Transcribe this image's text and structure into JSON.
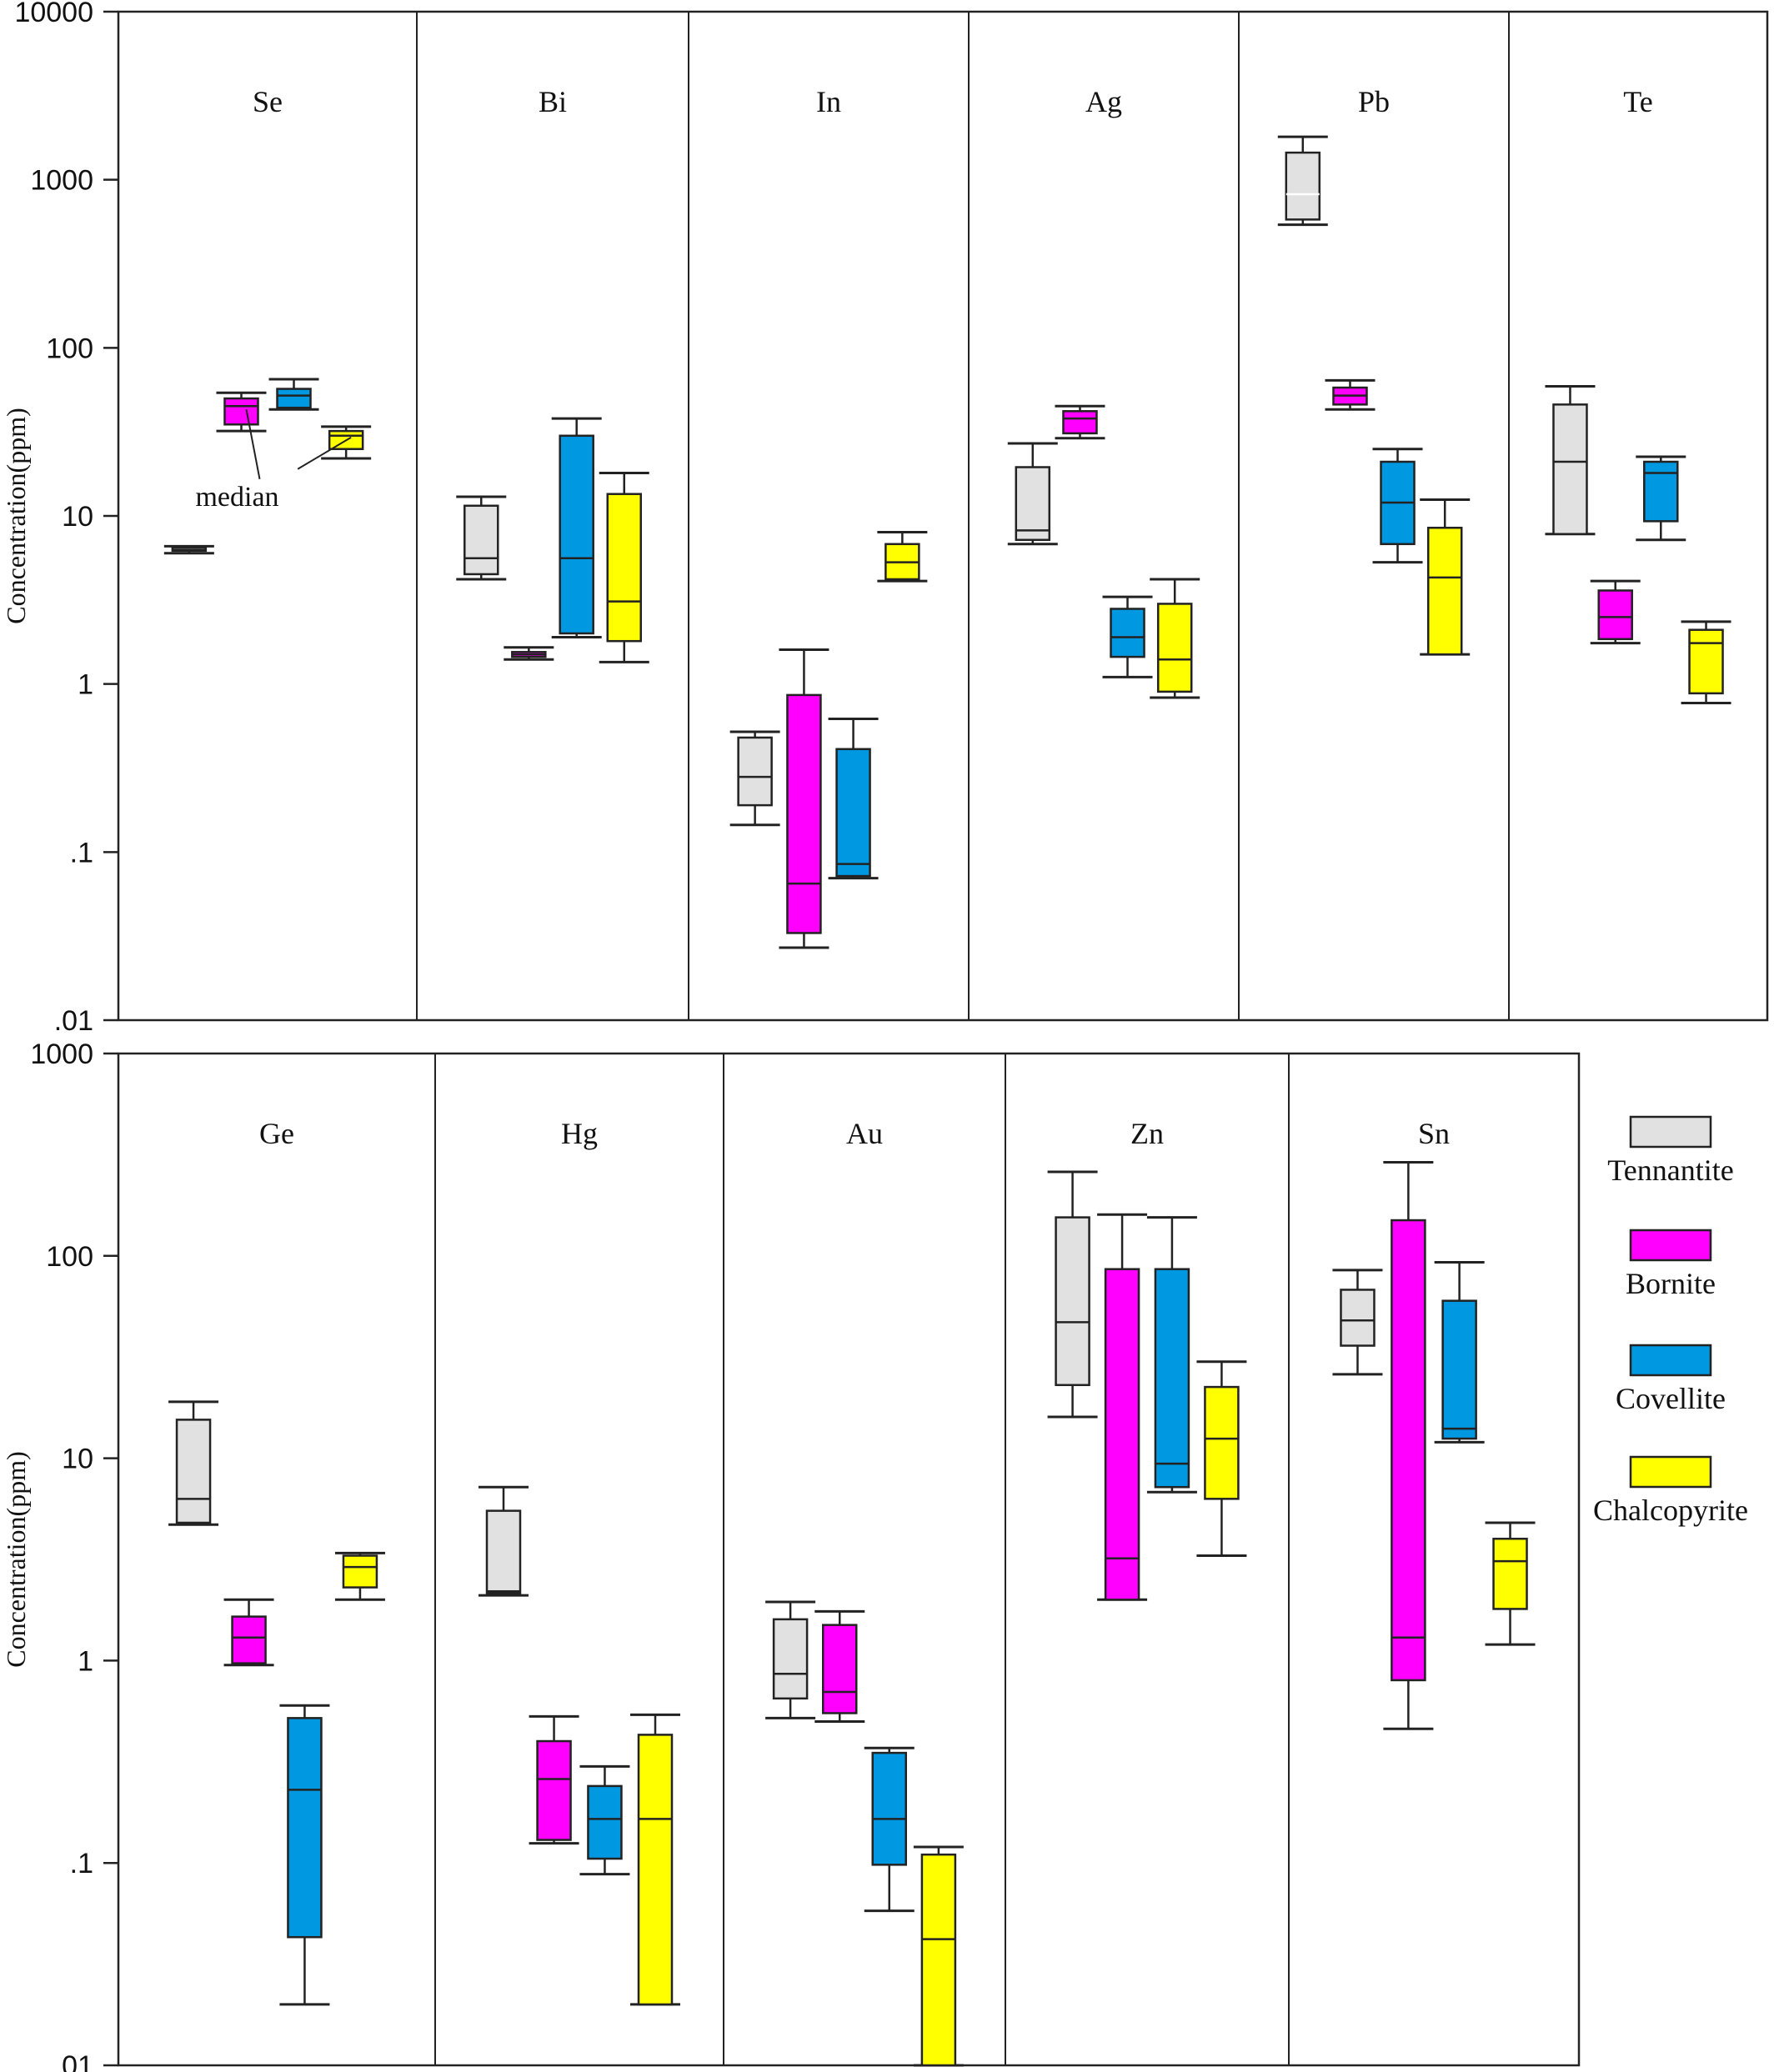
{
  "chart_data": [
    {
      "type": "box",
      "ylabel": "Concentration(ppm)",
      "yscale": "log",
      "ylim": [
        0.01,
        10000
      ],
      "yticks": [
        "10000",
        "1000",
        "100",
        "10",
        "1",
        ".1",
        ".01"
      ],
      "annotation": "median",
      "panels": [
        {
          "element": "Se",
          "boxes": [
            {
              "mineral": "Tennantite",
              "min": 6.0,
              "q1": 6.2,
              "median": 6.3,
              "q3": 6.5,
              "max": 6.6
            },
            {
              "mineral": "Bornite",
              "min": 32,
              "q1": 35,
              "median": 45,
              "q3": 50,
              "max": 54
            },
            {
              "mineral": "Covellite",
              "min": 43,
              "q1": 44,
              "median": 52,
              "q3": 57,
              "max": 65
            },
            {
              "mineral": "Chalcopyrite",
              "min": 22,
              "q1": 25,
              "median": 30,
              "q3": 32,
              "max": 34
            }
          ]
        },
        {
          "element": "Bi",
          "boxes": [
            {
              "mineral": "Tennantite",
              "min": 4.2,
              "q1": 4.5,
              "median": 5.6,
              "q3": 11.5,
              "max": 13
            },
            {
              "mineral": "Bornite",
              "min": 1.4,
              "q1": 1.45,
              "median": 1.5,
              "q3": 1.55,
              "max": 1.65
            },
            {
              "mineral": "Covellite",
              "min": 1.9,
              "q1": 2.0,
              "median": 5.6,
              "q3": 30,
              "max": 38
            },
            {
              "mineral": "Chalcopyrite",
              "min": 1.35,
              "q1": 1.8,
              "median": 3.1,
              "q3": 13.5,
              "max": 18
            }
          ]
        },
        {
          "element": "In",
          "boxes": [
            {
              "mineral": "Tennantite",
              "min": 0.145,
              "q1": 0.19,
              "median": 0.28,
              "q3": 0.48,
              "max": 0.52
            },
            {
              "mineral": "Bornite",
              "min": 0.027,
              "q1": 0.033,
              "median": 0.065,
              "q3": 0.86,
              "max": 1.6
            },
            {
              "mineral": "Covellite",
              "min": 0.07,
              "q1": 0.072,
              "median": 0.085,
              "q3": 0.41,
              "max": 0.62
            },
            {
              "mineral": "Chalcopyrite",
              "min": 4.1,
              "q1": 4.2,
              "median": 5.3,
              "q3": 6.8,
              "max": 8.0
            }
          ]
        },
        {
          "element": "Ag",
          "boxes": [
            {
              "mineral": "Tennantite",
              "min": 6.8,
              "q1": 7.2,
              "median": 8.2,
              "q3": 19.5,
              "max": 27
            },
            {
              "mineral": "Bornite",
              "min": 29,
              "q1": 31,
              "median": 38,
              "q3": 42,
              "max": 45
            },
            {
              "mineral": "Covellite",
              "min": 1.1,
              "q1": 1.45,
              "median": 1.9,
              "q3": 2.8,
              "max": 3.3
            },
            {
              "mineral": "Chalcopyrite",
              "min": 0.83,
              "q1": 0.9,
              "median": 1.4,
              "q3": 3.0,
              "max": 4.2
            }
          ]
        },
        {
          "element": "Pb",
          "boxes": [
            {
              "mineral": "Tennantite",
              "min": 540,
              "q1": 580,
              "median": 820,
              "q3": 1450,
              "max": 1800
            },
            {
              "mineral": "Bornite",
              "min": 43,
              "q1": 46,
              "median": 52,
              "q3": 58,
              "max": 64
            },
            {
              "mineral": "Covellite",
              "min": 5.3,
              "q1": 6.8,
              "median": 12,
              "q3": 21,
              "max": 25
            },
            {
              "mineral": "Chalcopyrite",
              "min": 1.5,
              "q1": 1.5,
              "median": 4.3,
              "q3": 8.5,
              "max": 12.5
            }
          ]
        },
        {
          "element": "Te",
          "boxes": [
            {
              "mineral": "Tennantite",
              "min": 7.8,
              "q1": 7.8,
              "median": 21,
              "q3": 46,
              "max": 59
            },
            {
              "mineral": "Bornite",
              "min": 1.75,
              "q1": 1.85,
              "median": 2.5,
              "q3": 3.6,
              "max": 4.1
            },
            {
              "mineral": "Covellite",
              "min": 7.2,
              "q1": 9.3,
              "median": 18,
              "q3": 21,
              "max": 22.5
            },
            {
              "mineral": "Chalcopyrite",
              "min": 0.77,
              "q1": 0.88,
              "median": 1.75,
              "q3": 2.1,
              "max": 2.35
            }
          ]
        }
      ]
    },
    {
      "type": "box",
      "ylabel": "Concentration(ppm)",
      "yscale": "log",
      "ylim": [
        0.01,
        1000
      ],
      "yticks": [
        "1000",
        "100",
        "10",
        "1",
        ".1",
        ".01"
      ],
      "panels": [
        {
          "element": "Ge",
          "boxes": [
            {
              "mineral": "Tennantite",
              "min": 4.7,
              "q1": 4.8,
              "median": 6.3,
              "q3": 15.5,
              "max": 19
            },
            {
              "mineral": "Bornite",
              "min": 0.95,
              "q1": 0.97,
              "median": 1.3,
              "q3": 1.65,
              "max": 2.0
            },
            {
              "mineral": "Covellite",
              "min": 0.02,
              "q1": 0.043,
              "median": 0.23,
              "q3": 0.52,
              "max": 0.6
            },
            {
              "mineral": "Chalcopyrite",
              "min": 2.0,
              "q1": 2.3,
              "median": 2.9,
              "q3": 3.3,
              "max": 3.4
            }
          ]
        },
        {
          "element": "Hg",
          "boxes": [
            {
              "mineral": "Tennantite",
              "min": 2.1,
              "q1": 2.15,
              "median": 2.2,
              "q3": 5.5,
              "max": 7.2
            },
            {
              "mineral": "Bornite",
              "min": 0.125,
              "q1": 0.13,
              "median": 0.26,
              "q3": 0.4,
              "max": 0.53
            },
            {
              "mineral": "Covellite",
              "min": 0.088,
              "q1": 0.105,
              "median": 0.165,
              "q3": 0.24,
              "max": 0.3
            },
            {
              "mineral": "Chalcopyrite",
              "min": 0.02,
              "q1": 0.02,
              "median": 0.165,
              "q3": 0.43,
              "max": 0.54
            }
          ]
        },
        {
          "element": "Au",
          "boxes": [
            {
              "mineral": "Tennantite",
              "min": 0.52,
              "q1": 0.65,
              "median": 0.86,
              "q3": 1.6,
              "max": 1.95
            },
            {
              "mineral": "Bornite",
              "min": 0.5,
              "q1": 0.55,
              "median": 0.7,
              "q3": 1.5,
              "max": 1.75
            },
            {
              "mineral": "Covellite",
              "min": 0.058,
              "q1": 0.098,
              "median": 0.165,
              "q3": 0.35,
              "max": 0.37
            },
            {
              "mineral": "Chalcopyrite",
              "min": 0.01,
              "q1": 0.01,
              "median": 0.042,
              "q3": 0.11,
              "max": 0.12
            }
          ]
        },
        {
          "element": "Zn",
          "boxes": [
            {
              "mineral": "Tennantite",
              "min": 16,
              "q1": 23,
              "median": 47,
              "q3": 155,
              "max": 260
            },
            {
              "mineral": "Bornite",
              "min": 2.0,
              "q1": 2.0,
              "median": 3.2,
              "q3": 86,
              "max": 160
            },
            {
              "mineral": "Covellite",
              "min": 6.8,
              "q1": 7.2,
              "median": 9.4,
              "q3": 86,
              "max": 155
            },
            {
              "mineral": "Chalcopyrite",
              "min": 3.3,
              "q1": 6.3,
              "median": 12.5,
              "q3": 22.5,
              "max": 30
            }
          ]
        },
        {
          "element": "Sn",
          "boxes": [
            {
              "mineral": "Tennantite",
              "min": 26,
              "q1": 36,
              "median": 48,
              "q3": 68,
              "max": 85
            },
            {
              "mineral": "Bornite",
              "min": 0.46,
              "q1": 0.8,
              "median": 1.3,
              "q3": 150,
              "max": 290
            },
            {
              "mineral": "Covellite",
              "min": 12,
              "q1": 12.5,
              "median": 14,
              "q3": 60,
              "max": 93
            },
            {
              "mineral": "Chalcopyrite",
              "min": 1.2,
              "q1": 1.8,
              "median": 3.1,
              "q3": 4.0,
              "max": 4.8
            }
          ]
        }
      ]
    }
  ],
  "legend": {
    "items": [
      {
        "label": "Tennantite",
        "color": "#e1e1e1"
      },
      {
        "label": "Bornite",
        "color": "#ff00ff"
      },
      {
        "label": "Covellite",
        "color": "#0098e0"
      },
      {
        "label": "Chalcopyrite",
        "color": "#ffff00"
      }
    ],
    "placement": "right of bottom chart"
  },
  "colors": {
    "Tennantite": "#e1e1e1",
    "Bornite": "#ff00ff",
    "Covellite": "#0098e0",
    "Chalcopyrite": "#ffff00",
    "median_light": "#ffffff",
    "median_default": "#222222"
  }
}
